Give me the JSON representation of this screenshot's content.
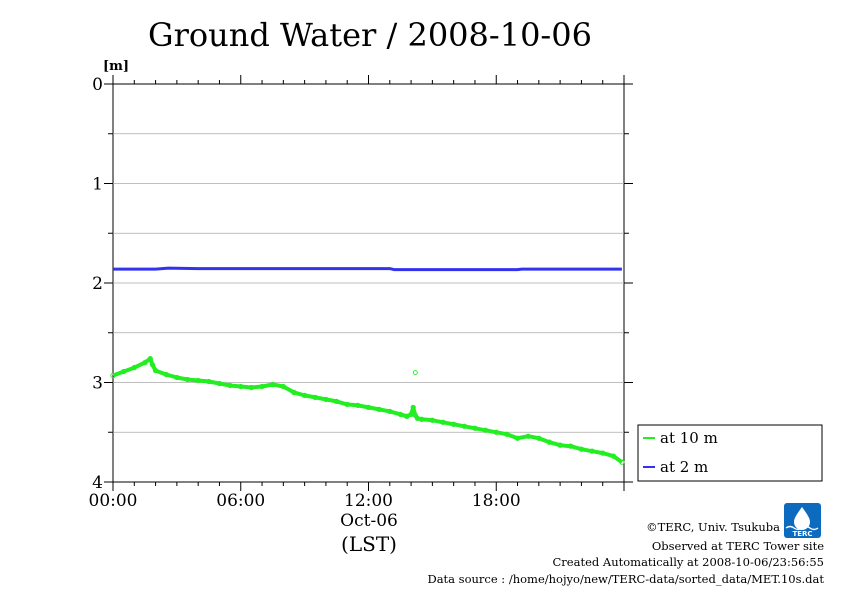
{
  "chart_data": {
    "type": "line",
    "title": "Ground Water / 2008-10-06",
    "ylabel": "[m]",
    "xlabel": "(LST)",
    "date_label": "Oct-06",
    "y_inverted": true,
    "ylim": [
      0,
      4
    ],
    "y_ticks": [
      "0",
      "1",
      "2",
      "3",
      "4"
    ],
    "y_gridlines": [
      0.5,
      1,
      1.5,
      2,
      2.5,
      3,
      3.5
    ],
    "xlim": [
      0,
      24
    ],
    "x_ticks": [
      {
        "label": "00:00",
        "hour": 0
      },
      {
        "label": "06:00",
        "hour": 6
      },
      {
        "label": "12:00",
        "hour": 12
      },
      {
        "label": "18:00",
        "hour": 18
      }
    ],
    "grid": true,
    "legend_position": "right-bottom",
    "series": [
      {
        "name": "at 10 m",
        "color": "#22ee22",
        "x": [
          0,
          0.5,
          1,
          1.5,
          1.75,
          1.85,
          2.0,
          2.5,
          3,
          3.5,
          4,
          4.5,
          5,
          5.5,
          6,
          6.5,
          7,
          7.5,
          8,
          8.5,
          9,
          9.5,
          10,
          10.5,
          11,
          11.5,
          12,
          12.5,
          13,
          13.5,
          13.8,
          14.0,
          14.1,
          14.2,
          14.3,
          14.5,
          15,
          15.5,
          16,
          16.5,
          17,
          17.5,
          18,
          18.5,
          19,
          19.5,
          20,
          20.5,
          21,
          21.5,
          22,
          22.5,
          23,
          23.5,
          23.9
        ],
        "values": [
          2.93,
          2.89,
          2.85,
          2.8,
          2.76,
          2.82,
          2.88,
          2.92,
          2.95,
          2.97,
          2.98,
          2.99,
          3.01,
          3.03,
          3.04,
          3.05,
          3.04,
          3.02,
          3.04,
          3.1,
          3.13,
          3.15,
          3.17,
          3.19,
          3.22,
          3.23,
          3.25,
          3.27,
          3.29,
          3.32,
          3.34,
          3.32,
          3.25,
          3.33,
          3.36,
          3.37,
          3.38,
          3.4,
          3.42,
          3.44,
          3.46,
          3.48,
          3.5,
          3.52,
          3.56,
          3.54,
          3.56,
          3.6,
          3.63,
          3.64,
          3.67,
          3.69,
          3.71,
          3.74,
          3.8
        ]
      },
      {
        "name": "at 2 m",
        "color": "#3333ee",
        "x": [
          0,
          2,
          2.6,
          4,
          6,
          8,
          10,
          12,
          13,
          13.2,
          16,
          18,
          19,
          19.2,
          22,
          23.9
        ],
        "values": [
          1.86,
          1.86,
          1.85,
          1.855,
          1.855,
          1.855,
          1.855,
          1.855,
          1.855,
          1.865,
          1.865,
          1.865,
          1.865,
          1.86,
          1.86,
          1.86
        ]
      }
    ],
    "annotations": {
      "outlier_10m": {
        "x": 14.2,
        "y": 2.9
      }
    }
  },
  "footer": {
    "copyright": "©TERC, Univ. Tsukuba",
    "observed": "Observed at TERC Tower site",
    "created": "Created Automatically at 2008-10-06/23:56:55",
    "source": "Data source : /home/hojyo/new/TERC-data/sorted_data/MET.10s.dat"
  },
  "logo": {
    "text": "TERC",
    "color": "#0d6bbf"
  }
}
